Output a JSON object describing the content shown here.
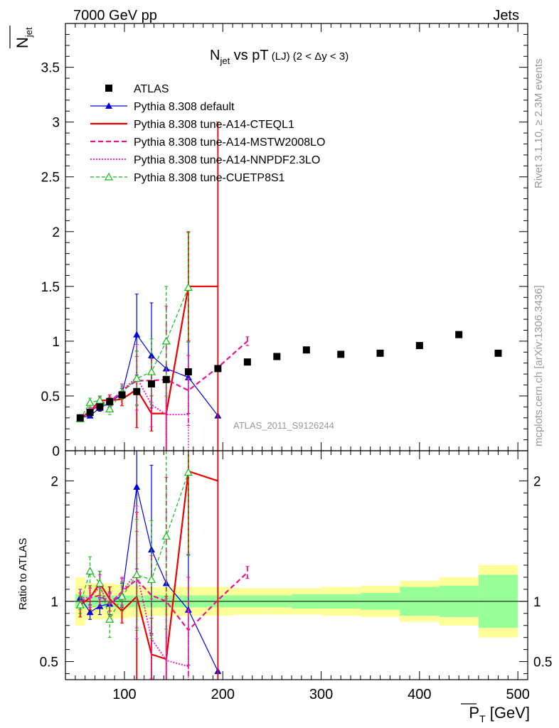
{
  "header": {
    "left": "7000 GeV pp",
    "right": "Jets"
  },
  "side_labels": {
    "rivet": "Rivet 3.1.10, ≥ 2.3M events",
    "mcplots": "mcplots.cern.ch [arXiv:1306.3436]"
  },
  "chart_data": {
    "type": "line",
    "title_main": "N",
    "title_sub": "jet",
    "title_rest": " vs pT",
    "title_small": " (LJ)  (2 < Δy < 3)",
    "ylabel_top": "N",
    "ylabel_top_sub": "jet",
    "ylabel_ratio": "Ratio to ATLAS",
    "xlabel": "P",
    "xlabel_sub": "T",
    "xlabel_unit": " [GeV]",
    "watermark": "ATLAS_2011_S9126244",
    "xlim": [
      40,
      510
    ],
    "ylim": [
      0,
      3.9
    ],
    "ratio_ylim": [
      0.35,
      2.25
    ],
    "x_ticks": [
      100,
      200,
      300,
      400,
      500
    ],
    "y_ticks": [
      {
        "v": 0,
        "label": "0"
      },
      {
        "v": 0.5,
        "label": "0.5"
      },
      {
        "v": 1,
        "label": "1"
      },
      {
        "v": 1.5,
        "label": "1.5"
      },
      {
        "v": 2,
        "label": "2"
      },
      {
        "v": 2.5,
        "label": "2.5"
      },
      {
        "v": 3,
        "label": "3"
      },
      {
        "v": 3.5,
        "label": "3.5"
      }
    ],
    "ratio_ticks": [
      {
        "v": 0.5,
        "label": "0.5"
      },
      {
        "v": 1,
        "label": "1"
      },
      {
        "v": 2,
        "label": "2"
      }
    ],
    "data": {
      "name": "ATLAS",
      "x": [
        55,
        65,
        75,
        85,
        97.5,
        112.5,
        127.5,
        142.5,
        165,
        195,
        225,
        255,
        285,
        320,
        360,
        400,
        440,
        480
      ],
      "y": [
        0.3,
        0.35,
        0.4,
        0.45,
        0.51,
        0.54,
        0.61,
        0.65,
        0.72,
        0.75,
        0.81,
        0.86,
        0.92,
        0.88,
        0.89,
        0.96,
        1.06,
        0.89
      ]
    },
    "bands": [
      {
        "x0": 50,
        "x1": 60,
        "inner": 0.06,
        "outer": 0.2
      },
      {
        "x0": 60,
        "x1": 70,
        "inner": 0.05,
        "outer": 0.15
      },
      {
        "x0": 70,
        "x1": 80,
        "inner": 0.05,
        "outer": 0.15
      },
      {
        "x0": 80,
        "x1": 90,
        "inner": 0.05,
        "outer": 0.15
      },
      {
        "x0": 90,
        "x1": 105,
        "inner": 0.05,
        "outer": 0.14
      },
      {
        "x0": 105,
        "x1": 120,
        "inner": 0.05,
        "outer": 0.13
      },
      {
        "x0": 120,
        "x1": 135,
        "inner": 0.05,
        "outer": 0.12
      },
      {
        "x0": 135,
        "x1": 150,
        "inner": 0.05,
        "outer": 0.12
      },
      {
        "x0": 150,
        "x1": 180,
        "inner": 0.05,
        "outer": 0.12
      },
      {
        "x0": 180,
        "x1": 210,
        "inner": 0.05,
        "outer": 0.12
      },
      {
        "x0": 210,
        "x1": 240,
        "inner": 0.05,
        "outer": 0.11
      },
      {
        "x0": 240,
        "x1": 270,
        "inner": 0.05,
        "outer": 0.11
      },
      {
        "x0": 270,
        "x1": 300,
        "inner": 0.06,
        "outer": 0.11
      },
      {
        "x0": 300,
        "x1": 340,
        "inner": 0.06,
        "outer": 0.12
      },
      {
        "x0": 340,
        "x1": 380,
        "inner": 0.07,
        "outer": 0.13
      },
      {
        "x0": 380,
        "x1": 420,
        "inner": 0.12,
        "outer": 0.17
      },
      {
        "x0": 420,
        "x1": 460,
        "inner": 0.13,
        "outer": 0.2
      },
      {
        "x0": 460,
        "x1": 500,
        "inner": 0.22,
        "outer": 0.3
      }
    ],
    "series": [
      {
        "name": "Pythia 8.308 default",
        "color": "#0000dd",
        "dash": "",
        "width": 1.2,
        "marker": "triangle",
        "step": false,
        "x": [
          55,
          65,
          75,
          85,
          97.5,
          112.5,
          127.5,
          142.5,
          165,
          195
        ],
        "y": [
          0.3,
          0.32,
          0.39,
          0.44,
          0.52,
          1.06,
          0.87,
          0.75,
          0.67,
          0.32
        ],
        "err": [
          0.02,
          0.02,
          0.03,
          0.04,
          0.05,
          0.37,
          0.48,
          0.0,
          0.33,
          0.0
        ],
        "ratio": [
          1.03,
          0.91,
          0.96,
          0.98,
          1.05,
          1.95,
          1.43,
          1.15,
          0.93,
          0.42
        ],
        "ratio_err": [
          0.07,
          0.06,
          0.07,
          0.09,
          0.1,
          0.68,
          0.7,
          0.0,
          0.46,
          0.0
        ]
      },
      {
        "name": "Pythia 8.308 tune-A14-CTEQL1",
        "color": "#ee0000",
        "dash": "",
        "width": 2.2,
        "marker": "none",
        "step": true,
        "x": [
          55,
          65,
          75,
          85,
          97.5,
          112.5,
          127.5,
          142.5,
          165,
          195
        ],
        "y": [
          0.29,
          0.36,
          0.46,
          0.46,
          0.47,
          0.56,
          0.34,
          0.34,
          1.5,
          1.5
        ],
        "err": [
          0.02,
          0.03,
          0.04,
          0.05,
          0.06,
          0.35,
          0.16,
          0.34,
          0.5,
          1.5
        ],
        "ratio": [
          0.97,
          1.03,
          1.15,
          1.02,
          0.92,
          1.04,
          0.56,
          0.52,
          2.08,
          2.0
        ],
        "ratio_err": [
          0.1,
          0.1,
          0.1,
          0.1,
          0.1,
          0.7,
          0.3,
          0.52,
          0.7,
          2.0
        ]
      },
      {
        "name": "Pythia 8.308 tune-A14-MSTW2008LO",
        "color": "#ee1188",
        "dash": "7,4",
        "width": 2.2,
        "marker": "none",
        "step": false,
        "x": [
          55,
          65,
          75,
          85,
          97.5,
          112.5,
          127.5,
          142.5,
          165,
          195,
          225
        ],
        "y": [
          0.3,
          0.36,
          0.42,
          0.44,
          0.55,
          0.64,
          0.64,
          0.65,
          0.55,
          0.76,
          1.0
        ],
        "err": [
          0.02,
          0.03,
          0.04,
          0.05,
          0.06,
          0.22,
          0.2,
          0.67,
          0.32,
          0.0,
          0.04
        ],
        "ratio": [
          1.0,
          1.03,
          1.05,
          0.98,
          1.08,
          1.18,
          1.05,
          1.0,
          0.76,
          1.01,
          1.24
        ],
        "ratio_err": [
          0.07,
          0.08,
          0.09,
          0.1,
          0.11,
          0.4,
          0.33,
          1.03,
          0.44,
          0.0,
          0.05
        ]
      },
      {
        "name": "Pythia 8.308 tune-A14-NNPDF2.3LO",
        "color": "#ee22cc",
        "dash": "2,2",
        "width": 2.0,
        "marker": "none",
        "step": false,
        "x": [
          55,
          65,
          75,
          85,
          97.5,
          112.5,
          127.5,
          142.5,
          165
        ],
        "y": [
          0.31,
          0.36,
          0.45,
          0.43,
          0.55,
          0.67,
          0.42,
          0.33,
          0.33
        ],
        "err": [
          0.02,
          0.03,
          0.04,
          0.05,
          0.06,
          0.3,
          0.2,
          0.33,
          0.33
        ],
        "ratio": [
          1.03,
          1.03,
          1.12,
          0.96,
          1.08,
          1.24,
          0.69,
          0.51,
          0.46
        ],
        "ratio_err": [
          0.07,
          0.08,
          0.1,
          0.1,
          0.12,
          0.55,
          0.33,
          0.51,
          0.46
        ]
      },
      {
        "name": "Pythia 8.308 tune-CUETP8S1",
        "color": "#11bb11",
        "dash": "5,3",
        "width": 1.2,
        "marker": "open-triangle",
        "step": false,
        "x": [
          55,
          65,
          75,
          85,
          97.5,
          112.5,
          127.5,
          142.5,
          165
        ],
        "y": [
          0.29,
          0.44,
          0.46,
          0.38,
          0.53,
          0.66,
          0.72,
          1.0,
          1.49
        ],
        "err": [
          0.02,
          0.04,
          0.04,
          0.05,
          0.06,
          0.25,
          0.3,
          0.5,
          0.5
        ],
        "ratio": [
          0.97,
          1.25,
          1.15,
          0.85,
          1.04,
          1.22,
          1.18,
          1.54,
          2.07
        ],
        "ratio_err": [
          0.07,
          0.12,
          0.1,
          0.15,
          0.12,
          0.46,
          0.49,
          0.77,
          0.69
        ]
      }
    ]
  }
}
